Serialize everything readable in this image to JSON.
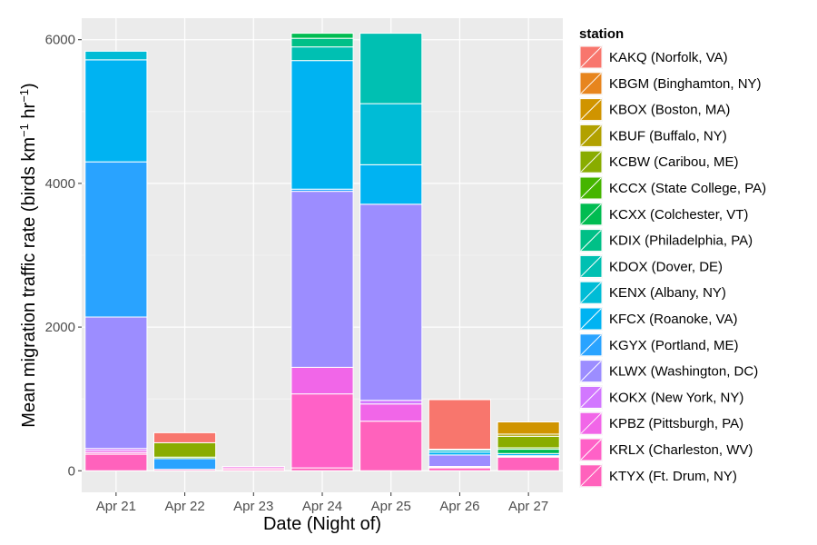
{
  "chart_data": {
    "type": "bar",
    "stacked": true,
    "xlabel": "Date (Night of)",
    "ylabel": {
      "prefix": "Mean migration traffic rate (birds km",
      "sup1": "−1",
      "middle": " hr",
      "sup2": "−1",
      "suffix": ")"
    },
    "ylim": [
      -300,
      6300
    ],
    "y_ticks": [
      0,
      2000,
      4000,
      6000
    ],
    "y_minor_ticks": [
      1000,
      3000,
      5000
    ],
    "grid": true,
    "legend_position": "right",
    "legend_title": "station",
    "categories": [
      "Apr 21",
      "Apr 22",
      "Apr 23",
      "Apr 24",
      "Apr 25",
      "Apr 26",
      "Apr 27"
    ],
    "series": [
      {
        "name": "KAKQ (Norfolk, VA)",
        "color": "#F8766D",
        "values": [
          0,
          140,
          0,
          0,
          0,
          690,
          0
        ]
      },
      {
        "name": "KBGM (Binghamton, NY)",
        "color": "#E7851E",
        "values": [
          0,
          0,
          0,
          0,
          0,
          0,
          0
        ]
      },
      {
        "name": "KBOX (Boston, MA)",
        "color": "#D09400",
        "values": [
          0,
          0,
          0,
          0,
          0,
          0,
          170
        ]
      },
      {
        "name": "KBUF (Buffalo, NY)",
        "color": "#B2A100",
        "values": [
          0,
          0,
          0,
          0,
          0,
          0,
          30
        ]
      },
      {
        "name": "KCBW (Caribou, ME)",
        "color": "#89AC00",
        "values": [
          0,
          200,
          0,
          0,
          0,
          0,
          160
        ]
      },
      {
        "name": "KCCX (State College, PA)",
        "color": "#45B500",
        "values": [
          0,
          20,
          0,
          0,
          0,
          0,
          20
        ]
      },
      {
        "name": "KCXX (Colchester, VT)",
        "color": "#00BC51",
        "values": [
          0,
          0,
          0,
          70,
          0,
          0,
          60
        ]
      },
      {
        "name": "KDIX (Philadelphia, PA)",
        "color": "#00C087",
        "values": [
          0,
          0,
          0,
          120,
          0,
          0,
          0
        ]
      },
      {
        "name": "KDOX (Dover, DE)",
        "color": "#00C0B2",
        "values": [
          0,
          0,
          0,
          190,
          980,
          10,
          0
        ]
      },
      {
        "name": "KENX (Albany, NY)",
        "color": "#00BCD6",
        "values": [
          120,
          0,
          0,
          0,
          850,
          30,
          0
        ]
      },
      {
        "name": "KFCX (Roanoke, VA)",
        "color": "#00B3F2",
        "values": [
          1420,
          0,
          0,
          1790,
          550,
          40,
          30
        ]
      },
      {
        "name": "KGYX (Portland, ME)",
        "color": "#29A3FF",
        "values": [
          2160,
          150,
          0,
          30,
          0,
          0,
          0
        ]
      },
      {
        "name": "KLWX (Washington, DC)",
        "color": "#9C8DFF",
        "values": [
          1830,
          0,
          0,
          2450,
          2730,
          160,
          0
        ]
      },
      {
        "name": "KOKX (New York, NY)",
        "color": "#D277FF",
        "values": [
          30,
          0,
          0,
          0,
          50,
          0,
          0
        ]
      },
      {
        "name": "KPBZ (Pittsburgh, PA)",
        "color": "#F166E8",
        "values": [
          30,
          0,
          20,
          370,
          240,
          10,
          10
        ]
      },
      {
        "name": "KRLX (Charleston, WV)",
        "color": "#FF61C7",
        "values": [
          20,
          0,
          20,
          1030,
          0,
          10,
          10
        ]
      },
      {
        "name": "KTYX (Ft. Drum, NY)",
        "color": "#FF62BC",
        "values": [
          230,
          20,
          20,
          40,
          690,
          40,
          190
        ]
      }
    ]
  }
}
